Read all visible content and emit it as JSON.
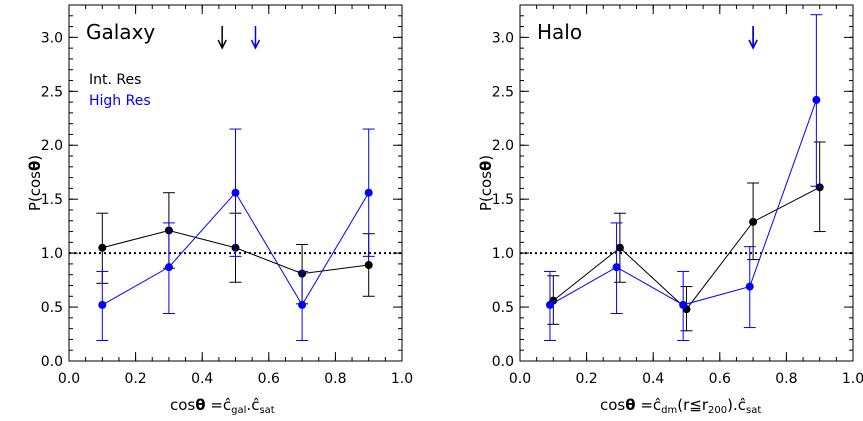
{
  "chart_data": [
    {
      "type": "scatter",
      "title": "Galaxy",
      "xlabel": "cosθ =ĉgal.ĉsat",
      "ylabel": "P(cosθ)",
      "xlim": [
        0.0,
        1.0
      ],
      "ylim": [
        0.0,
        3.3
      ],
      "xticks": [
        "0.0",
        "0.2",
        "0.4",
        "0.6",
        "0.8",
        "1.0"
      ],
      "yticks": [
        "0.0",
        "0.5",
        "1.0",
        "1.5",
        "2.0",
        "2.5",
        "3.0"
      ],
      "reference_line": 1.0,
      "legend": [
        "Int. Res",
        "High Res"
      ],
      "series": [
        {
          "name": "Int. Res",
          "color": "#000000",
          "x": [
            0.1,
            0.3,
            0.5,
            0.7,
            0.9
          ],
          "y": [
            1.05,
            1.21,
            1.05,
            0.81,
            0.89
          ],
          "err_low": [
            0.72,
            0.86,
            0.73,
            0.53,
            0.6
          ],
          "err_high": [
            1.37,
            1.56,
            1.37,
            1.08,
            1.18
          ]
        },
        {
          "name": "High Res",
          "color": "#0000ff",
          "x": [
            0.1,
            0.3,
            0.5,
            0.7,
            0.9
          ],
          "y": [
            0.52,
            0.87,
            1.56,
            0.52,
            1.56
          ],
          "err_low": [
            0.19,
            0.44,
            0.97,
            0.19,
            0.97
          ],
          "err_high": [
            0.83,
            1.28,
            2.15,
            0.83,
            2.15
          ]
        }
      ],
      "arrows": [
        {
          "x": 0.46,
          "color": "#000000"
        },
        {
          "x": 0.56,
          "color": "#0000ff"
        }
      ]
    },
    {
      "type": "scatter",
      "title": "Halo",
      "xlabel": "cosθ =ĉdm(r≦r200).ĉsat",
      "ylabel": "P(cosθ)",
      "xlim": [
        0.0,
        1.0
      ],
      "ylim": [
        0.0,
        3.3
      ],
      "xticks": [
        "0.0",
        "0.2",
        "0.4",
        "0.6",
        "0.8",
        "1.0"
      ],
      "yticks": [
        "0.0",
        "0.5",
        "1.0",
        "1.5",
        "2.0",
        "2.5",
        "3.0"
      ],
      "reference_line": 1.0,
      "series": [
        {
          "name": "Int. Res",
          "color": "#000000",
          "x": [
            0.1,
            0.3,
            0.5,
            0.7,
            0.9
          ],
          "y": [
            0.56,
            1.05,
            0.48,
            1.29,
            1.61
          ],
          "err_low": [
            0.34,
            0.73,
            0.28,
            0.94,
            1.2
          ],
          "err_high": [
            0.79,
            1.37,
            0.69,
            1.65,
            2.03
          ]
        },
        {
          "name": "High Res",
          "color": "#0000ff",
          "x": [
            0.09,
            0.29,
            0.49,
            0.69,
            0.89
          ],
          "y": [
            0.52,
            0.87,
            0.52,
            0.69,
            2.42
          ],
          "err_low": [
            0.19,
            0.44,
            0.19,
            0.31,
            1.62
          ],
          "err_high": [
            0.83,
            1.28,
            0.83,
            1.06,
            3.21
          ]
        }
      ],
      "arrows": [
        {
          "x": 0.7,
          "color": "#000000"
        },
        {
          "x": 0.7,
          "color": "#0000ff"
        }
      ]
    }
  ]
}
